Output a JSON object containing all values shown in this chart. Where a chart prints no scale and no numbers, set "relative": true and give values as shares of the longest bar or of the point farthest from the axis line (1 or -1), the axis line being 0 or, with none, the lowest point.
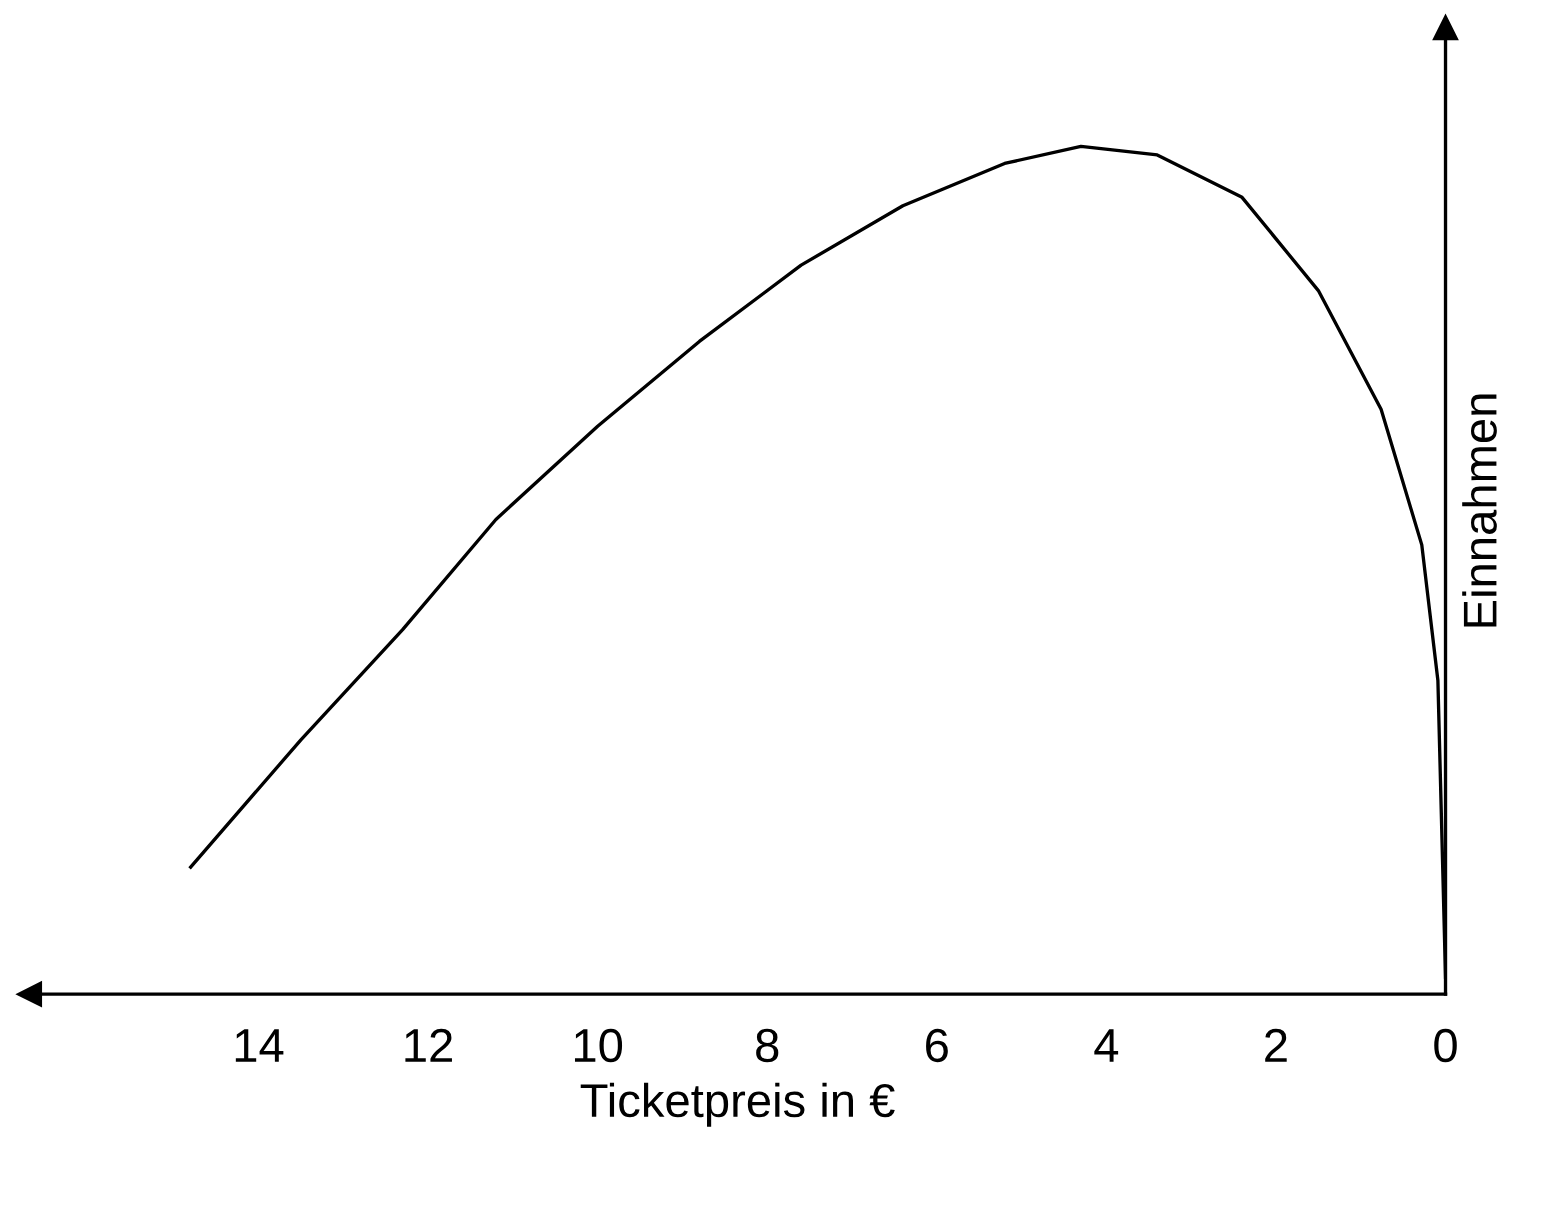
{
  "chart_data": {
    "type": "line",
    "xlabel": "Ticketpreis in €",
    "ylabel": "Einnahmen",
    "relative": true,
    "x": [
      14.8,
      13.5,
      12.3,
      11.2,
      10.0,
      8.8,
      7.6,
      6.4,
      5.2,
      4.3,
      3.4,
      2.4,
      1.5,
      0.76,
      0.28,
      0.09,
      0
    ],
    "values": [
      0.15,
      0.3,
      0.43,
      0.56,
      0.67,
      0.77,
      0.86,
      0.93,
      0.98,
      1.0,
      0.99,
      0.94,
      0.83,
      0.69,
      0.53,
      0.37,
      0.02
    ],
    "color": "#000000",
    "xlim": [
      16.7,
      0
    ],
    "xticks": [
      14,
      12,
      10,
      8,
      6,
      4,
      2,
      0
    ],
    "grid": false,
    "legend": false,
    "marker": "none",
    "line_style": "solid",
    "tick_labels": "x"
  }
}
